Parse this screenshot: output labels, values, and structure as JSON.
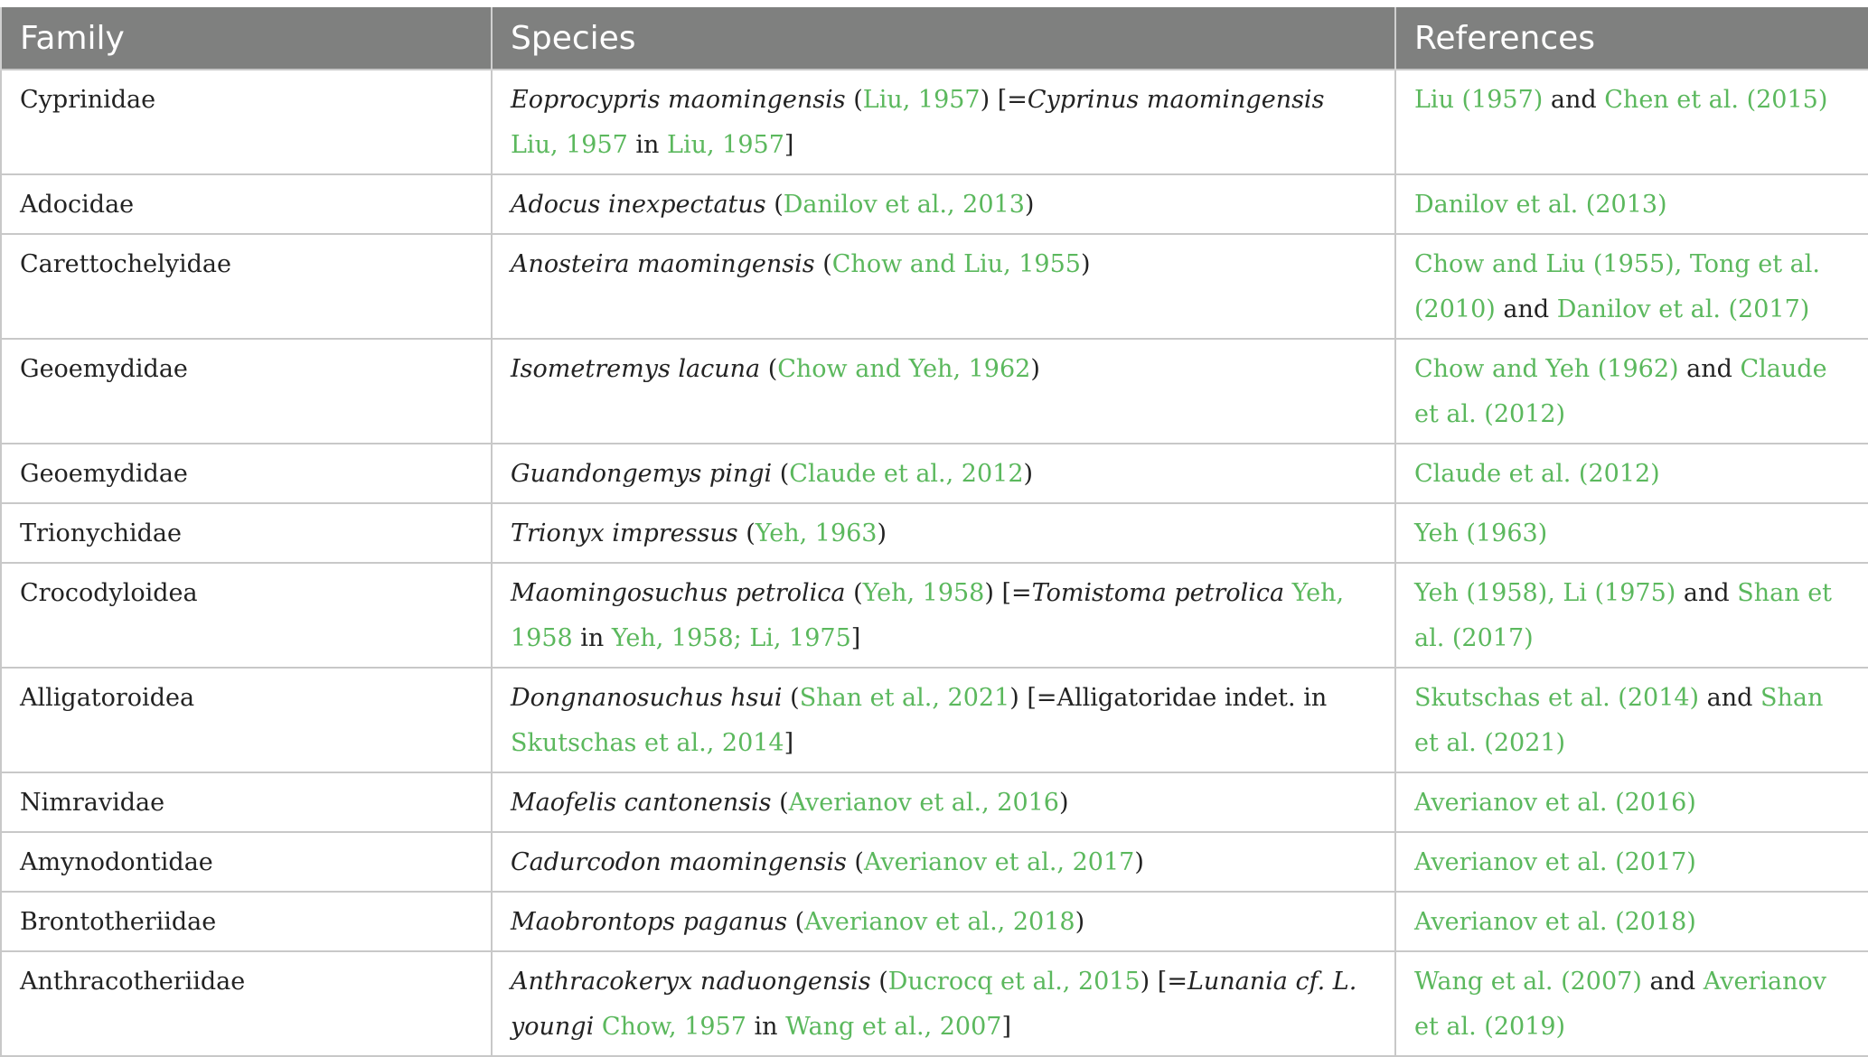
{
  "table": {
    "headers": [
      "Family",
      "Species",
      "References"
    ],
    "rows": [
      {
        "family": "Cyprinidae",
        "species": [
          {
            "t": "Eoprocypris maomingensis",
            "s": "it"
          },
          {
            "t": " (",
            "s": ""
          },
          {
            "t": "Liu, 1957",
            "s": "ln"
          },
          {
            "t": ") [=",
            "s": ""
          },
          {
            "t": "Cyprinus maomingensis",
            "s": "it"
          },
          {
            "t": " ",
            "s": ""
          },
          {
            "t": "Liu, 1957",
            "s": "ln"
          },
          {
            "t": " in ",
            "s": ""
          },
          {
            "t": "Liu, 1957",
            "s": "ln"
          },
          {
            "t": "]",
            "s": ""
          }
        ],
        "references": [
          {
            "t": "Liu (1957)",
            "s": "ln"
          },
          {
            "t": " and ",
            "s": ""
          },
          {
            "t": "Chen et al. (2015)",
            "s": "ln"
          }
        ]
      },
      {
        "family": "Adocidae",
        "species": [
          {
            "t": "Adocus inexpectatus",
            "s": "it"
          },
          {
            "t": " (",
            "s": ""
          },
          {
            "t": "Danilov et al., 2013",
            "s": "ln"
          },
          {
            "t": ")",
            "s": ""
          }
        ],
        "references": [
          {
            "t": "Danilov et al. (2013)",
            "s": "ln"
          }
        ]
      },
      {
        "family": "Carettochelyidae",
        "species": [
          {
            "t": "Anosteira maomingensis",
            "s": "it"
          },
          {
            "t": " (",
            "s": ""
          },
          {
            "t": "Chow and Liu, 1955",
            "s": "ln"
          },
          {
            "t": ")",
            "s": ""
          }
        ],
        "references": [
          {
            "t": "Chow and Liu (1955), Tong et al. (2010)",
            "s": "ln"
          },
          {
            "t": " and ",
            "s": ""
          },
          {
            "t": "Danilov et al. (2017)",
            "s": "ln"
          }
        ]
      },
      {
        "family": "Geoemydidae",
        "species": [
          {
            "t": "Isometremys lacuna",
            "s": "it"
          },
          {
            "t": " (",
            "s": ""
          },
          {
            "t": "Chow and Yeh, 1962",
            "s": "ln"
          },
          {
            "t": ")",
            "s": ""
          }
        ],
        "references": [
          {
            "t": "Chow and Yeh (1962)",
            "s": "ln"
          },
          {
            "t": " and ",
            "s": ""
          },
          {
            "t": "Claude et al. (2012)",
            "s": "ln"
          }
        ]
      },
      {
        "family": "Geoemydidae",
        "species": [
          {
            "t": "Guandongemys pingi",
            "s": "it"
          },
          {
            "t": " (",
            "s": ""
          },
          {
            "t": "Claude et al., 2012",
            "s": "ln"
          },
          {
            "t": ")",
            "s": ""
          }
        ],
        "references": [
          {
            "t": "Claude et al. (2012)",
            "s": "ln"
          }
        ]
      },
      {
        "family": "Trionychidae",
        "species": [
          {
            "t": "Trionyx impressus",
            "s": "it"
          },
          {
            "t": " (",
            "s": ""
          },
          {
            "t": "Yeh, 1963",
            "s": "ln"
          },
          {
            "t": ")",
            "s": ""
          }
        ],
        "references": [
          {
            "t": "Yeh (1963)",
            "s": "ln"
          }
        ]
      },
      {
        "family": "Crocodyloidea",
        "species": [
          {
            "t": "Maomingosuchus petrolica",
            "s": "it"
          },
          {
            "t": " (",
            "s": ""
          },
          {
            "t": "Yeh, 1958",
            "s": "ln"
          },
          {
            "t": ") [=",
            "s": ""
          },
          {
            "t": "Tomistoma petrolica",
            "s": "it"
          },
          {
            "t": " ",
            "s": ""
          },
          {
            "t": "Yeh, 1958",
            "s": "ln"
          },
          {
            "t": " in ",
            "s": ""
          },
          {
            "t": "Yeh, 1958; Li, 1975",
            "s": "ln"
          },
          {
            "t": "]",
            "s": ""
          }
        ],
        "references": [
          {
            "t": "Yeh (1958), Li (1975)",
            "s": "ln"
          },
          {
            "t": " and ",
            "s": ""
          },
          {
            "t": "Shan et al. (2017)",
            "s": "ln"
          }
        ]
      },
      {
        "family": "Alligatoroidea",
        "species": [
          {
            "t": "Dongnanosuchus hsui",
            "s": "it"
          },
          {
            "t": " (",
            "s": ""
          },
          {
            "t": "Shan et al., 2021",
            "s": "ln"
          },
          {
            "t": ") [=Alligatoridae indet. in ",
            "s": ""
          },
          {
            "t": "Skutschas et al., 2014",
            "s": "ln"
          },
          {
            "t": "]",
            "s": ""
          }
        ],
        "references": [
          {
            "t": "Skutschas et al. (2014)",
            "s": "ln"
          },
          {
            "t": " and ",
            "s": ""
          },
          {
            "t": "Shan et al. (2021)",
            "s": "ln"
          }
        ]
      },
      {
        "family": "Nimravidae",
        "species": [
          {
            "t": "Maofelis cantonensis",
            "s": "it"
          },
          {
            "t": " (",
            "s": ""
          },
          {
            "t": "Averianov et al., 2016",
            "s": "ln"
          },
          {
            "t": ")",
            "s": ""
          }
        ],
        "references": [
          {
            "t": "Averianov et al. (2016)",
            "s": "ln"
          }
        ]
      },
      {
        "family": "Amynodontidae",
        "species": [
          {
            "t": "Cadurcodon maomingensis",
            "s": "it"
          },
          {
            "t": " (",
            "s": ""
          },
          {
            "t": "Averianov et al., 2017",
            "s": "ln"
          },
          {
            "t": ")",
            "s": ""
          }
        ],
        "references": [
          {
            "t": "Averianov et al. (2017)",
            "s": "ln"
          }
        ]
      },
      {
        "family": "Brontotheriidae",
        "species": [
          {
            "t": "Maobrontops paganus",
            "s": "it"
          },
          {
            "t": " (",
            "s": ""
          },
          {
            "t": "Averianov et al., 2018",
            "s": "ln"
          },
          {
            "t": ")",
            "s": ""
          }
        ],
        "references": [
          {
            "t": "Averianov et al. (2018)",
            "s": "ln"
          }
        ]
      },
      {
        "family": "Anthracotheriidae",
        "species": [
          {
            "t": "Anthracokeryx naduongensis",
            "s": "it"
          },
          {
            "t": " (",
            "s": ""
          },
          {
            "t": "Ducrocq et al., 2015",
            "s": "ln"
          },
          {
            "t": ") [=",
            "s": ""
          },
          {
            "t": "Lunania cf. L. youngi",
            "s": "it"
          },
          {
            "t": " ",
            "s": ""
          },
          {
            "t": "Chow, 1957",
            "s": "ln"
          },
          {
            "t": " in ",
            "s": ""
          },
          {
            "t": "Wang et al., 2007",
            "s": "ln"
          },
          {
            "t": "]",
            "s": ""
          }
        ],
        "references": [
          {
            "t": "Wang et al. (2007)",
            "s": "ln"
          },
          {
            "t": " and ",
            "s": ""
          },
          {
            "t": "Averianov et al. (2019)",
            "s": "ln"
          }
        ]
      }
    ]
  }
}
